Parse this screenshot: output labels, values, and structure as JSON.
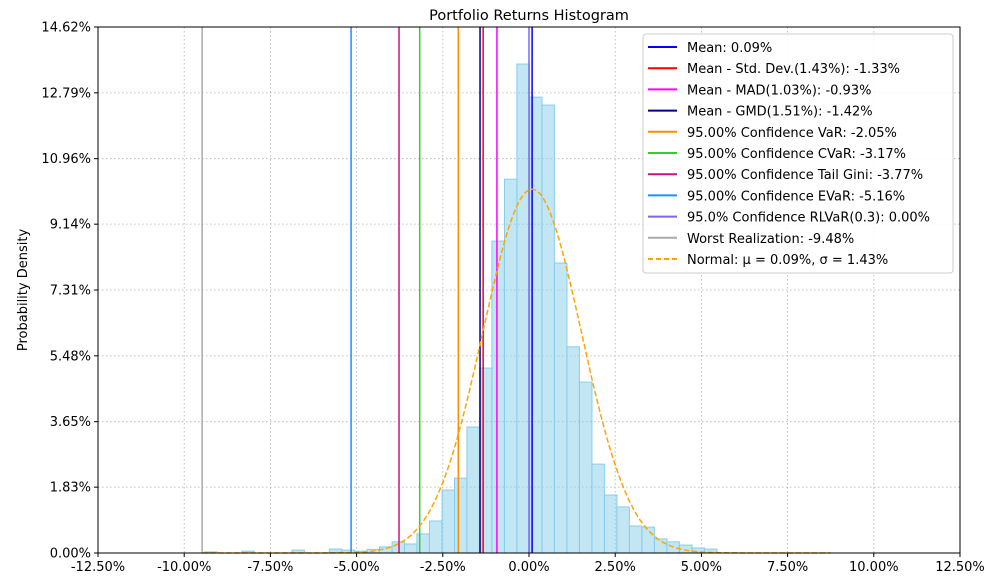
{
  "chart_data": {
    "type": "bar",
    "title": "Portfolio Returns Histogram",
    "xlabel": "",
    "ylabel": "Probability Density",
    "xlim": [
      -12.5,
      12.5
    ],
    "ylim": [
      0,
      14.62
    ],
    "grid": true,
    "legend_position": "top-right",
    "x_tick_labels": [
      "-12.50%",
      "-10.00%",
      "-7.50%",
      "-5.00%",
      "-2.50%",
      "0.00%",
      "2.50%",
      "5.00%",
      "7.50%",
      "10.00%",
      "12.50%"
    ],
    "x_ticks": [
      -12.5,
      -10,
      -7.5,
      -5,
      -2.5,
      0,
      2.5,
      5,
      7.5,
      10,
      12.5
    ],
    "y_tick_labels": [
      "0.00%",
      "1.83%",
      "3.65%",
      "5.48%",
      "7.31%",
      "9.14%",
      "10.96%",
      "12.79%",
      "14.62%"
    ],
    "y_ticks": [
      0,
      1.83,
      3.65,
      5.48,
      7.31,
      9.14,
      10.96,
      12.79,
      14.62
    ],
    "histogram": {
      "color": "#87ceeb",
      "bin_width": 0.3625,
      "bin_centers": [
        -9.23,
        -8.15,
        -6.695,
        -5.61,
        -5.245,
        -4.88,
        -4.52,
        -4.155,
        -3.79,
        -3.43,
        -3.07,
        -2.705,
        -2.34,
        -1.98,
        -1.62,
        -1.255,
        -0.895,
        -0.53,
        -0.17,
        0.195,
        0.555,
        0.92,
        1.28,
        1.645,
        2.005,
        2.37,
        2.73,
        3.095,
        3.455,
        3.82,
        4.18,
        4.545,
        4.905,
        5.27
      ],
      "values": [
        0.03,
        0.05,
        0.08,
        0.11,
        0.08,
        0.05,
        0.1,
        0.17,
        0.31,
        0.25,
        0.53,
        0.89,
        1.75,
        2.08,
        3.5,
        5.14,
        8.67,
        10.39,
        13.59,
        12.67,
        12.45,
        8.06,
        5.73,
        4.75,
        2.47,
        1.61,
        1.28,
        0.75,
        0.72,
        0.39,
        0.31,
        0.22,
        0.14,
        0.11
      ]
    },
    "series": [
      {
        "name": "Mean: 0.09%",
        "value": 0.09,
        "color": "#0000ff",
        "style": "solid"
      },
      {
        "name": "Mean - Std. Dev.(1.43%): -1.33%",
        "value": -1.33,
        "color": "#ff0000",
        "style": "solid"
      },
      {
        "name": "Mean - MAD(1.03%): -0.93%",
        "value": -0.93,
        "color": "#ff00ff",
        "style": "solid"
      },
      {
        "name": "Mean - GMD(1.51%): -1.42%",
        "value": -1.42,
        "color": "#00008b",
        "style": "solid"
      },
      {
        "name": "95.00% Confidence VaR: -2.05%",
        "value": -2.05,
        "color": "#ff8c00",
        "style": "solid"
      },
      {
        "name": "95.00% Confidence CVaR: -3.17%",
        "value": -3.17,
        "color": "#32cd32",
        "style": "solid"
      },
      {
        "name": "95.00% Confidence Tail Gini: -3.77%",
        "value": -3.77,
        "color": "#c71585",
        "style": "solid"
      },
      {
        "name": "95.00% Confidence EVaR: -5.16%",
        "value": -5.16,
        "color": "#1e90ff",
        "style": "solid"
      },
      {
        "name": "95.0% Confidence RLVaR(0.3): 0.00%",
        "value": 0.0,
        "color": "#7b68ee",
        "style": "solid"
      },
      {
        "name": "Worst Realization: -9.48%",
        "value": -9.48,
        "color": "#a9a9a9",
        "style": "solid"
      }
    ],
    "normal": {
      "name": "Normal: μ = 0.09%, σ = 1.43%",
      "mu": 0.09,
      "sigma": 1.43,
      "x_range": [
        -9.48,
        8.75
      ],
      "color": "#ffa500",
      "style": "dashed"
    }
  }
}
